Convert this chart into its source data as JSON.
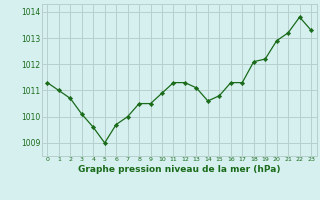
{
  "x": [
    0,
    1,
    2,
    3,
    4,
    5,
    6,
    7,
    8,
    9,
    10,
    11,
    12,
    13,
    14,
    15,
    16,
    17,
    18,
    19,
    20,
    21,
    22,
    23
  ],
  "y": [
    1011.3,
    1011.0,
    1010.7,
    1010.1,
    1009.6,
    1009.0,
    1009.7,
    1010.0,
    1010.5,
    1010.5,
    1010.9,
    1011.3,
    1011.3,
    1011.1,
    1010.6,
    1010.8,
    1011.3,
    1011.3,
    1012.1,
    1012.2,
    1012.9,
    1013.2,
    1013.8,
    1013.3
  ],
  "line_color": "#1a6b1a",
  "marker_color": "#1a6b1a",
  "bg_color": "#d6f0f0",
  "grid_color": "#b8d0cc",
  "xlabel": "Graphe pression niveau de la mer (hPa)",
  "xlabel_color": "#1a6b1a",
  "tick_label_color": "#1a6b1a",
  "ylim": [
    1008.5,
    1014.3
  ],
  "yticks": [
    1009,
    1010,
    1011,
    1012,
    1013,
    1014
  ],
  "xticks": [
    0,
    1,
    2,
    3,
    4,
    5,
    6,
    7,
    8,
    9,
    10,
    11,
    12,
    13,
    14,
    15,
    16,
    17,
    18,
    19,
    20,
    21,
    22,
    23
  ],
  "xtick_labels": [
    "0",
    "1",
    "2",
    "3",
    "4",
    "5",
    "6",
    "7",
    "8",
    "9",
    "10",
    "11",
    "12",
    "13",
    "14",
    "15",
    "16",
    "17",
    "18",
    "19",
    "20",
    "21",
    "22",
    "23"
  ]
}
